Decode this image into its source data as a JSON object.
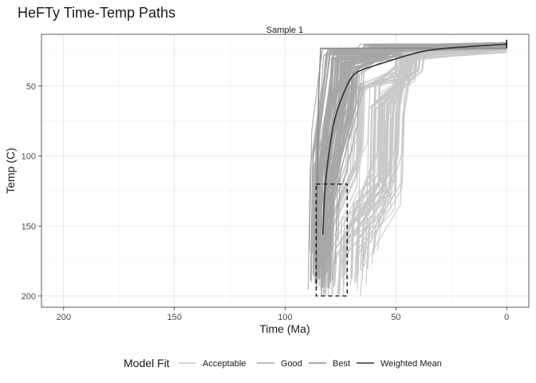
{
  "chart_data": {
    "type": "line",
    "title": "HeFTy Time-Temp Paths",
    "subtitle": "Sample 1",
    "xlabel": "Time (Ma)",
    "ylabel": "Temp (C)",
    "xlim": [
      210,
      -10
    ],
    "ylim": [
      208,
      13
    ],
    "y_reversed": true,
    "x_reversed": true,
    "x_ticks": [
      200,
      150,
      100,
      50,
      0
    ],
    "y_ticks": [
      50,
      100,
      150,
      200
    ],
    "grid": true,
    "legend_title": "Model Fit",
    "legend_position": "bottom",
    "series": [
      {
        "name": "Acceptable",
        "color": "#c8c8c8",
        "sample_paths": [
          {
            "x": [
              84,
              83,
              72,
              71,
              48,
              47,
              0
            ],
            "y": [
              195,
              150,
              110,
              52,
              45,
              28,
              22
            ]
          },
          {
            "x": [
              80,
              79,
              65,
              64,
              45,
              44,
              0
            ],
            "y": [
              190,
              145,
              95,
              50,
              40,
              27,
              20
            ]
          },
          {
            "x": [
              76,
              75,
              58,
              57,
              42,
              41,
              0
            ],
            "y": [
              198,
              160,
              120,
              60,
              40,
              25,
              23
            ]
          },
          {
            "x": [
              73,
              72,
              55,
              54,
              44,
              43,
              0
            ],
            "y": [
              185,
              150,
              130,
              55,
              45,
              28,
              24
            ]
          },
          {
            "x": [
              68,
              67,
              50,
              49,
              46,
              45,
              0
            ],
            "y": [
              190,
              170,
              125,
              70,
              40,
              30,
              22
            ]
          },
          {
            "x": [
              64,
              63,
              52,
              51,
              47,
              46,
              0
            ],
            "y": [
              175,
              140,
              110,
              60,
              38,
              26,
              21
            ]
          },
          {
            "x": [
              60,
              59,
              49,
              48,
              45,
              44,
              0
            ],
            "y": [
              170,
              155,
              100,
              58,
              40,
              28,
              22
            ]
          },
          {
            "x": [
              78,
              77,
              62,
              61,
              40,
              39,
              0
            ],
            "y": [
              193,
              170,
              140,
              65,
              38,
              24,
              21
            ]
          },
          {
            "x": [
              82,
              81,
              68,
              67,
              43,
              42,
              0
            ],
            "y": [
              197,
              160,
              115,
              52,
              35,
              25,
              20
            ]
          },
          {
            "x": [
              70,
              69,
              57,
              56,
              44,
              43,
              0
            ],
            "y": [
              188,
              135,
              118,
              62,
              42,
              27,
              23
            ]
          },
          {
            "x": [
              74,
              73,
              60,
              59,
              50,
              49,
              0
            ],
            "y": [
              180,
              160,
              105,
              48,
              36,
              26,
              21
            ]
          },
          {
            "x": [
              66,
              65,
              53,
              52,
              48,
              47,
              0
            ],
            "y": [
              182,
              150,
              128,
              75,
              41,
              29,
              24
            ]
          }
        ]
      },
      {
        "name": "Good",
        "color": "#a6a6a6",
        "sample_paths": [
          {
            "x": [
              86,
              85,
              80,
              79,
              60,
              59,
              0
            ],
            "y": [
              190,
              120,
              60,
              30,
              28,
              22,
              20
            ]
          },
          {
            "x": [
              84,
              83,
              78,
              77,
              55,
              54,
              0
            ],
            "y": [
              180,
              100,
              55,
              32,
              26,
              21,
              19
            ]
          },
          {
            "x": [
              82,
              81,
              74,
              73,
              52,
              51,
              0
            ],
            "y": [
              185,
              110,
              50,
              28,
              25,
              22,
              20
            ]
          },
          {
            "x": [
              87,
              86,
              82,
              81,
              65,
              64,
              0
            ],
            "y": [
              175,
              90,
              40,
              25,
              24,
              21,
              19
            ]
          },
          {
            "x": [
              80,
              79,
              70,
              69,
              58,
              57,
              0
            ],
            "y": [
              170,
              130,
              70,
              40,
              30,
              24,
              21
            ]
          },
          {
            "x": [
              85,
              84,
              76,
              75,
              62,
              61,
              0
            ],
            "y": [
              188,
              140,
              65,
              35,
              27,
              23,
              20
            ]
          },
          {
            "x": [
              83,
              82,
              72,
              71,
              50,
              49,
              0
            ],
            "y": [
              178,
              95,
              48,
              33,
              29,
              22,
              19
            ]
          },
          {
            "x": [
              86,
              85,
              79,
              78,
              56,
              55,
              0
            ],
            "y": [
              192,
              115,
              45,
              27,
              25,
              21,
              20
            ]
          },
          {
            "x": [
              81,
              80,
              73,
              72,
              53,
              52,
              0
            ],
            "y": [
              183,
              125,
              58,
              36,
              28,
              23,
              21
            ]
          },
          {
            "x": [
              84,
              83,
              77,
              76,
              63,
              62,
              0
            ],
            "y": [
              174,
              105,
              52,
              29,
              26,
              22,
              20
            ]
          },
          {
            "x": [
              79,
              78,
              68,
              67,
              57,
              56,
              0
            ],
            "y": [
              168,
              118,
              62,
              38,
              30,
              24,
              22
            ]
          },
          {
            "x": [
              87,
              86,
              81,
              80,
              61,
              60,
              0
            ],
            "y": [
              186,
              98,
              42,
              26,
              24,
              21,
              19
            ]
          },
          {
            "x": [
              82,
              81,
              75,
              74,
              54,
              53,
              0
            ],
            "y": [
              181,
              132,
              67,
              34,
              27,
              22,
              20
            ]
          },
          {
            "x": [
              85,
              84,
              71,
              70,
              59,
              58,
              0
            ],
            "y": [
              176,
              112,
              46,
              31,
              28,
              23,
              21
            ]
          }
        ]
      },
      {
        "name": "Best",
        "color": "#8c8c8c",
        "sample_paths": [
          {
            "x": [
              86,
              85,
              84,
              84,
              0
            ],
            "y": [
              190,
              60,
              25,
              23,
              23
            ]
          }
        ]
      },
      {
        "name": "Weighted Mean",
        "color": "#333333",
        "x": [
          83,
          82,
          80,
          78,
          75,
          70,
          65,
          55,
          45,
          35,
          20,
          10,
          0
        ],
        "y": [
          156,
          120,
          95,
          75,
          60,
          42,
          38,
          33,
          28,
          24,
          22,
          21,
          20
        ]
      }
    ],
    "constraint_box": {
      "x_range": [
        86,
        72
      ],
      "y_range": [
        120,
        200
      ],
      "style": "dashed"
    }
  }
}
